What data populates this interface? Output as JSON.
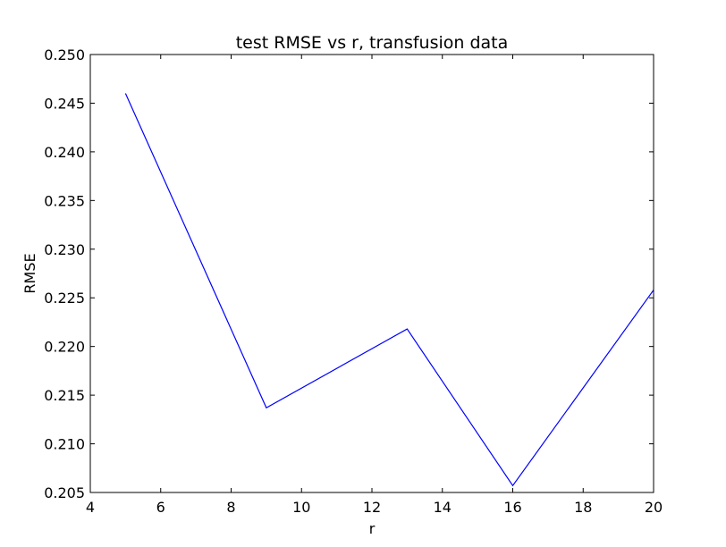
{
  "chart_data": {
    "type": "line",
    "title": "test RMSE vs r, transfusion data",
    "xlabel": "r",
    "ylabel": "RMSE",
    "xlim": [
      4,
      20
    ],
    "ylim": [
      0.205,
      0.25
    ],
    "xticks": [
      "4",
      "6",
      "8",
      "10",
      "12",
      "14",
      "16",
      "18",
      "20"
    ],
    "yticks": [
      "0.205",
      "0.210",
      "0.215",
      "0.220",
      "0.225",
      "0.230",
      "0.235",
      "0.240",
      "0.245",
      "0.250"
    ],
    "grid": false,
    "series": [
      {
        "color": "#0000ff",
        "x": [
          5,
          9,
          13,
          16,
          20
        ],
        "y": [
          0.246,
          0.2137,
          0.2218,
          0.2057,
          0.2258
        ]
      }
    ]
  }
}
